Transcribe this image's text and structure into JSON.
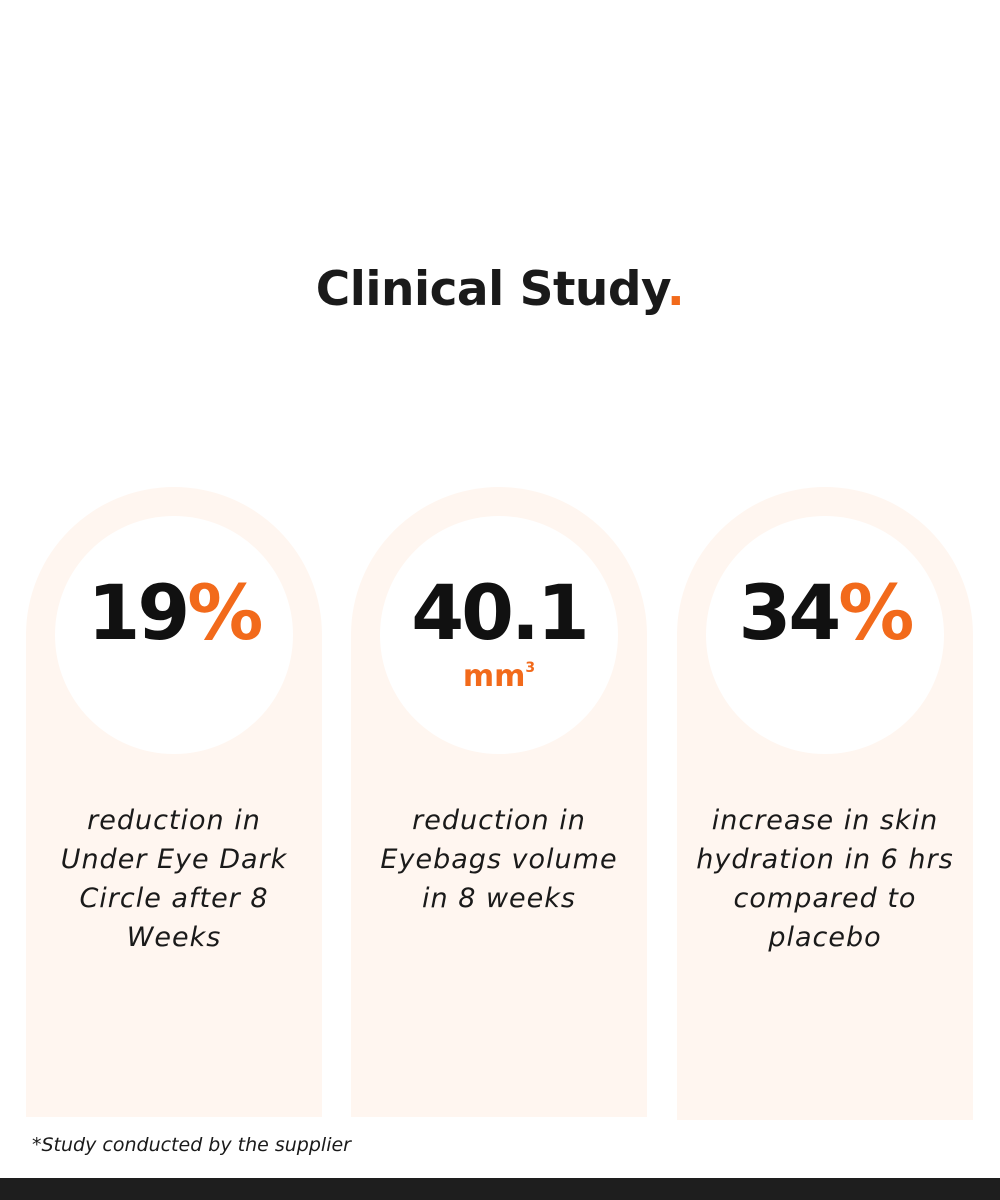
{
  "heading": {
    "text": "Clinical Study",
    "dot": "."
  },
  "stats": [
    {
      "number": "19",
      "unit": "%",
      "description": "reduction in Under Eye Dark Circle after 8 Weeks"
    },
    {
      "number": "40.1",
      "unit_base": "mm",
      "unit_exp": "3",
      "description": "reduction in Eyebags volume in 8 weeks"
    },
    {
      "number": "34",
      "unit": "%",
      "description": "increase in skin hydration in 6 hrs compared to placebo"
    }
  ],
  "footnote": "*Study conducted by the supplier",
  "colors": {
    "accent": "#f26a1b",
    "card_bg": "#fff6f0",
    "text": "#1a1a1a"
  }
}
